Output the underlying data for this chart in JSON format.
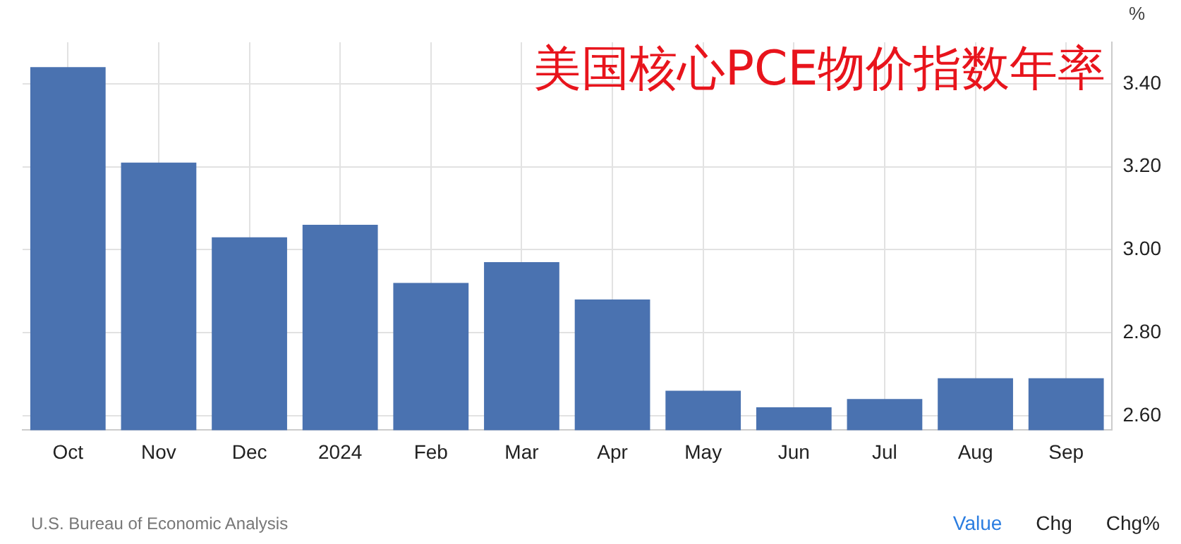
{
  "chart_data": {
    "type": "bar",
    "title": "美国核心PCE物价指数年率",
    "ylabel": "%",
    "categories": [
      "Oct",
      "Nov",
      "Dec",
      "2024",
      "Feb",
      "Mar",
      "Apr",
      "May",
      "Jun",
      "Jul",
      "Aug",
      "Sep"
    ],
    "values": [
      3.44,
      3.21,
      3.03,
      3.06,
      2.92,
      2.97,
      2.88,
      2.66,
      2.62,
      2.64,
      2.69,
      2.69
    ],
    "color": "#4a72b0",
    "ylim": [
      2.565,
      3.5
    ],
    "yticks": [
      {
        "value": 2.6,
        "label": "2.60"
      },
      {
        "value": 2.8,
        "label": "2.80"
      },
      {
        "value": 3.0,
        "label": "3.00"
      },
      {
        "value": 3.2,
        "label": "3.20"
      },
      {
        "value": 3.4,
        "label": "3.40"
      }
    ],
    "grid": true,
    "annotations": [
      "U.S. Bureau of Economic Analysis",
      "Value",
      "Chg",
      "Chg%"
    ]
  }
}
